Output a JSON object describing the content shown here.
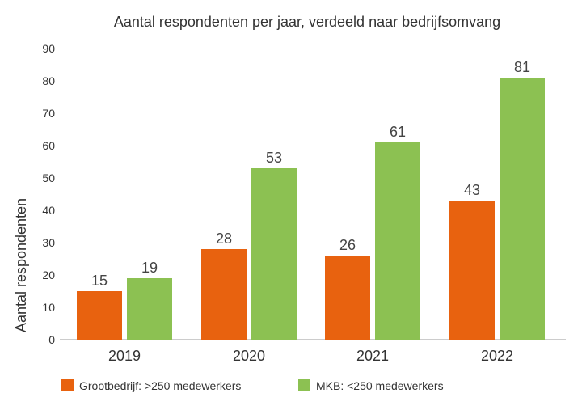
{
  "chart_data": {
    "type": "bar",
    "title": "Aantal respondenten per jaar, verdeeld naar bedrijfsomvang",
    "xlabel": "",
    "ylabel": "Aantal respondenten",
    "ylim": [
      0,
      90
    ],
    "yticks": [
      0,
      10,
      20,
      30,
      40,
      50,
      60,
      70,
      80,
      90
    ],
    "grid": false,
    "legend_position": "bottom",
    "categories": [
      "2019",
      "2020",
      "2021",
      "2022"
    ],
    "series": [
      {
        "name": "Grootbedrijf: >250 medewerkers",
        "color": "#E8620F",
        "values": [
          15,
          28,
          26,
          43
        ]
      },
      {
        "name": "MKB: <250 medewerkers",
        "color": "#8CC152",
        "values": [
          19,
          53,
          61,
          81
        ]
      }
    ]
  }
}
